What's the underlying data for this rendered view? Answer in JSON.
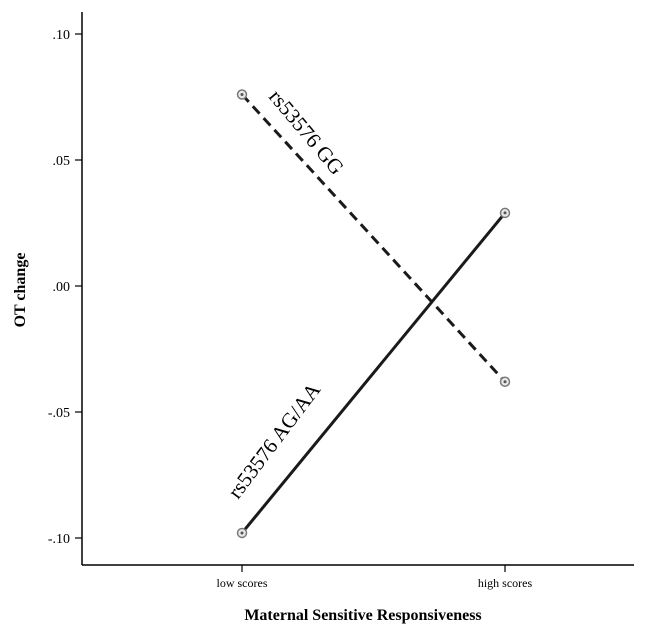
{
  "chart_data": {
    "type": "line",
    "xlabel": "Maternal Sensitive Responsiveness",
    "ylabel": "OT change",
    "categories": [
      "low scores",
      "high scores"
    ],
    "ylim": [
      -0.11,
      0.11
    ],
    "y_ticks": [
      0.1,
      0.05,
      0.0,
      -0.05,
      -0.1
    ],
    "y_tick_labels": [
      ".10",
      ".05",
      ".00",
      "-.05",
      "-.10"
    ],
    "grid": false,
    "series": [
      {
        "name": "rs53576 GG",
        "values": [
          0.076,
          -0.038
        ],
        "line_style": "dashed",
        "color": "#1a1a1a"
      },
      {
        "name": "rs53576 AG/AA",
        "values": [
          -0.098,
          0.029
        ],
        "line_style": "solid",
        "color": "#1a1a1a"
      }
    ]
  }
}
